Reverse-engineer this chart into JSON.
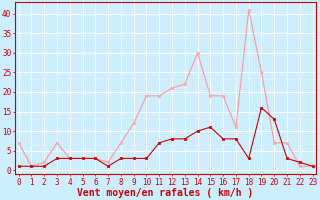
{
  "x": [
    0,
    1,
    2,
    3,
    4,
    5,
    6,
    7,
    8,
    9,
    10,
    11,
    12,
    13,
    14,
    15,
    16,
    17,
    18,
    19,
    20,
    21,
    22,
    23
  ],
  "wind_avg": [
    1,
    1,
    1,
    3,
    3,
    3,
    3,
    1,
    3,
    3,
    3,
    7,
    8,
    8,
    10,
    11,
    8,
    8,
    3,
    16,
    13,
    3,
    2,
    1
  ],
  "wind_gust": [
    7,
    1,
    2,
    7,
    3,
    3,
    3,
    2,
    7,
    12,
    19,
    19,
    21,
    22,
    30,
    19,
    19,
    11,
    41,
    25,
    7,
    7,
    1,
    1
  ],
  "bg_color": "#cceeff",
  "grid_color": "#ffffff",
  "line_color_avg": "#cc0000",
  "line_color_gust": "#ff9999",
  "marker_color_avg": "#cc0000",
  "marker_color_gust": "#ffaaaa",
  "xlabel": "Vent moyen/en rafales ( km/h )",
  "ylabel_ticks": [
    0,
    5,
    10,
    15,
    20,
    25,
    30,
    35,
    40
  ],
  "ylim": [
    -1,
    43
  ],
  "xlim": [
    -0.3,
    23.3
  ],
  "xlabel_fontsize": 7,
  "tick_fontsize": 5.5,
  "axis_color": "#cc0000"
}
